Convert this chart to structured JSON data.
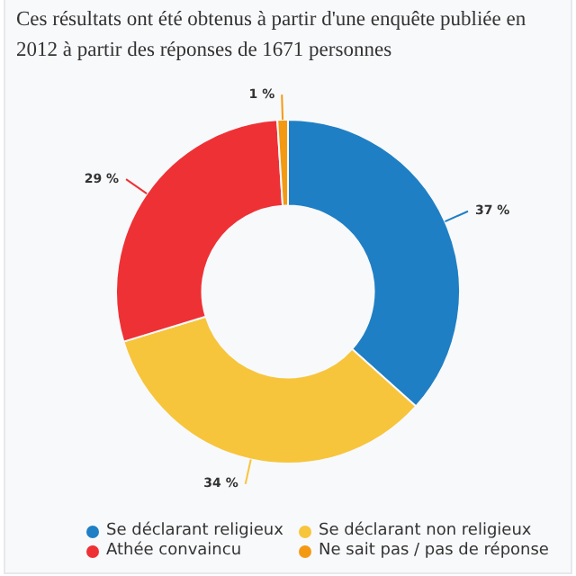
{
  "chart_data": {
    "type": "donut",
    "title": "Ces résultats ont été obtenus à partir d'une enquête publiée en 2012 à partir des réponses de 1671 personnes",
    "categories": [
      "Se déclarant religieux",
      "Se déclarant non religieux",
      "Athée convaincu",
      "Ne sait pas / pas de réponse"
    ],
    "values": [
      37,
      34,
      29,
      1
    ],
    "colors": [
      "#1f7fc4",
      "#f7c53b",
      "#ee3135",
      "#f39a12"
    ],
    "value_labels": [
      "37 %",
      "34 %",
      "29 %",
      "1 %"
    ],
    "legend": "bottom"
  }
}
